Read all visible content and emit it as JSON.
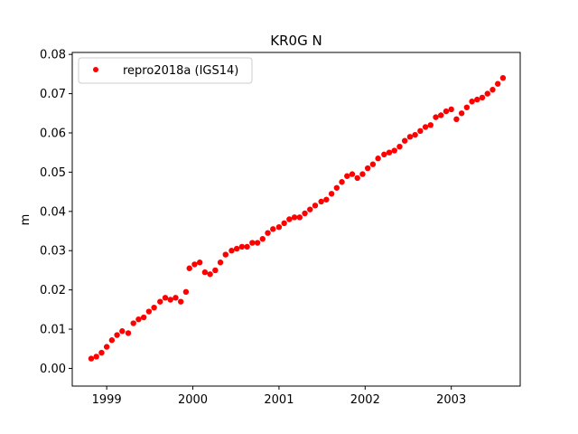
{
  "chart_data": {
    "type": "scatter",
    "title": "KR0G N",
    "xlabel": "",
    "ylabel": "m",
    "xlim": [
      1998.6,
      2003.8
    ],
    "ylim": [
      -0.0045,
      0.0805
    ],
    "x_ticks": [
      {
        "value": 1999,
        "label": "1999"
      },
      {
        "value": 2000,
        "label": "2000"
      },
      {
        "value": 2001,
        "label": "2001"
      },
      {
        "value": 2002,
        "label": "2002"
      },
      {
        "value": 2003,
        "label": "2003"
      }
    ],
    "y_ticks": [
      {
        "value": 0.0,
        "label": "0.00"
      },
      {
        "value": 0.01,
        "label": "0.01"
      },
      {
        "value": 0.02,
        "label": "0.02"
      },
      {
        "value": 0.03,
        "label": "0.03"
      },
      {
        "value": 0.04,
        "label": "0.04"
      },
      {
        "value": 0.05,
        "label": "0.05"
      },
      {
        "value": 0.06,
        "label": "0.06"
      },
      {
        "value": 0.07,
        "label": "0.07"
      },
      {
        "value": 0.08,
        "label": "0.08"
      }
    ],
    "grid": false,
    "legend_position": "top-left",
    "series": [
      {
        "name": "repro2018a (IGS14)",
        "color": "#ff0000",
        "x": [
          1998.82,
          1998.88,
          1998.94,
          1999.0,
          1999.06,
          1999.12,
          1999.18,
          1999.25,
          1999.31,
          1999.37,
          1999.43,
          1999.49,
          1999.55,
          1999.62,
          1999.68,
          1999.74,
          1999.8,
          1999.86,
          1999.92,
          1999.96,
          2000.02,
          2000.08,
          2000.14,
          2000.2,
          2000.26,
          2000.32,
          2000.38,
          2000.45,
          2000.51,
          2000.57,
          2000.63,
          2000.69,
          2000.75,
          2000.81,
          2000.87,
          2000.93,
          2001.0,
          2001.06,
          2001.12,
          2001.18,
          2001.24,
          2001.3,
          2001.36,
          2001.42,
          2001.49,
          2001.55,
          2001.61,
          2001.67,
          2001.73,
          2001.79,
          2001.85,
          2001.91,
          2001.97,
          2002.03,
          2002.09,
          2002.15,
          2002.22,
          2002.28,
          2002.34,
          2002.4,
          2002.46,
          2002.52,
          2002.58,
          2002.64,
          2002.7,
          2002.76,
          2002.82,
          2002.88,
          2002.94,
          2003.0,
          2003.06,
          2003.12,
          2003.18,
          2003.24,
          2003.3,
          2003.36,
          2003.42,
          2003.48,
          2003.54,
          2003.6
        ],
        "y": [
          0.0025,
          0.003,
          0.004,
          0.0055,
          0.0072,
          0.0085,
          0.0095,
          0.009,
          0.0115,
          0.0125,
          0.013,
          0.0145,
          0.0155,
          0.017,
          0.018,
          0.0175,
          0.018,
          0.017,
          0.0195,
          0.0255,
          0.0265,
          0.027,
          0.0245,
          0.024,
          0.025,
          0.027,
          0.029,
          0.03,
          0.0305,
          0.031,
          0.031,
          0.032,
          0.032,
          0.033,
          0.0345,
          0.0355,
          0.036,
          0.037,
          0.038,
          0.0385,
          0.0385,
          0.0395,
          0.0405,
          0.0415,
          0.0425,
          0.043,
          0.0445,
          0.046,
          0.0475,
          0.049,
          0.0495,
          0.0485,
          0.0495,
          0.051,
          0.052,
          0.0535,
          0.0545,
          0.055,
          0.0555,
          0.0565,
          0.058,
          0.059,
          0.0595,
          0.0605,
          0.0615,
          0.062,
          0.064,
          0.0645,
          0.0655,
          0.066,
          0.0635,
          0.065,
          0.0665,
          0.068,
          0.0685,
          0.069,
          0.07,
          0.071,
          0.0725,
          0.074
        ]
      }
    ]
  }
}
